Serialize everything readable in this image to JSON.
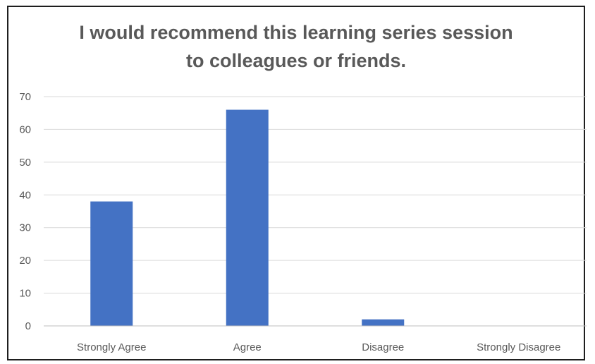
{
  "chart_data": {
    "type": "bar",
    "title_lines": [
      "I would recommend this learning series session",
      "to colleagues or friends."
    ],
    "categories": [
      "Strongly Agree",
      "Agree",
      "Disagree",
      "Strongly Disagree"
    ],
    "values": [
      38,
      66,
      2,
      0
    ],
    "ylim": [
      0,
      70
    ],
    "yticks": [
      0,
      10,
      20,
      30,
      40,
      50,
      60,
      70
    ],
    "grid": true,
    "legend": "none",
    "bar_color": "#4472C4",
    "grid_color": "#d9d9d9",
    "text_color": "#595959"
  }
}
